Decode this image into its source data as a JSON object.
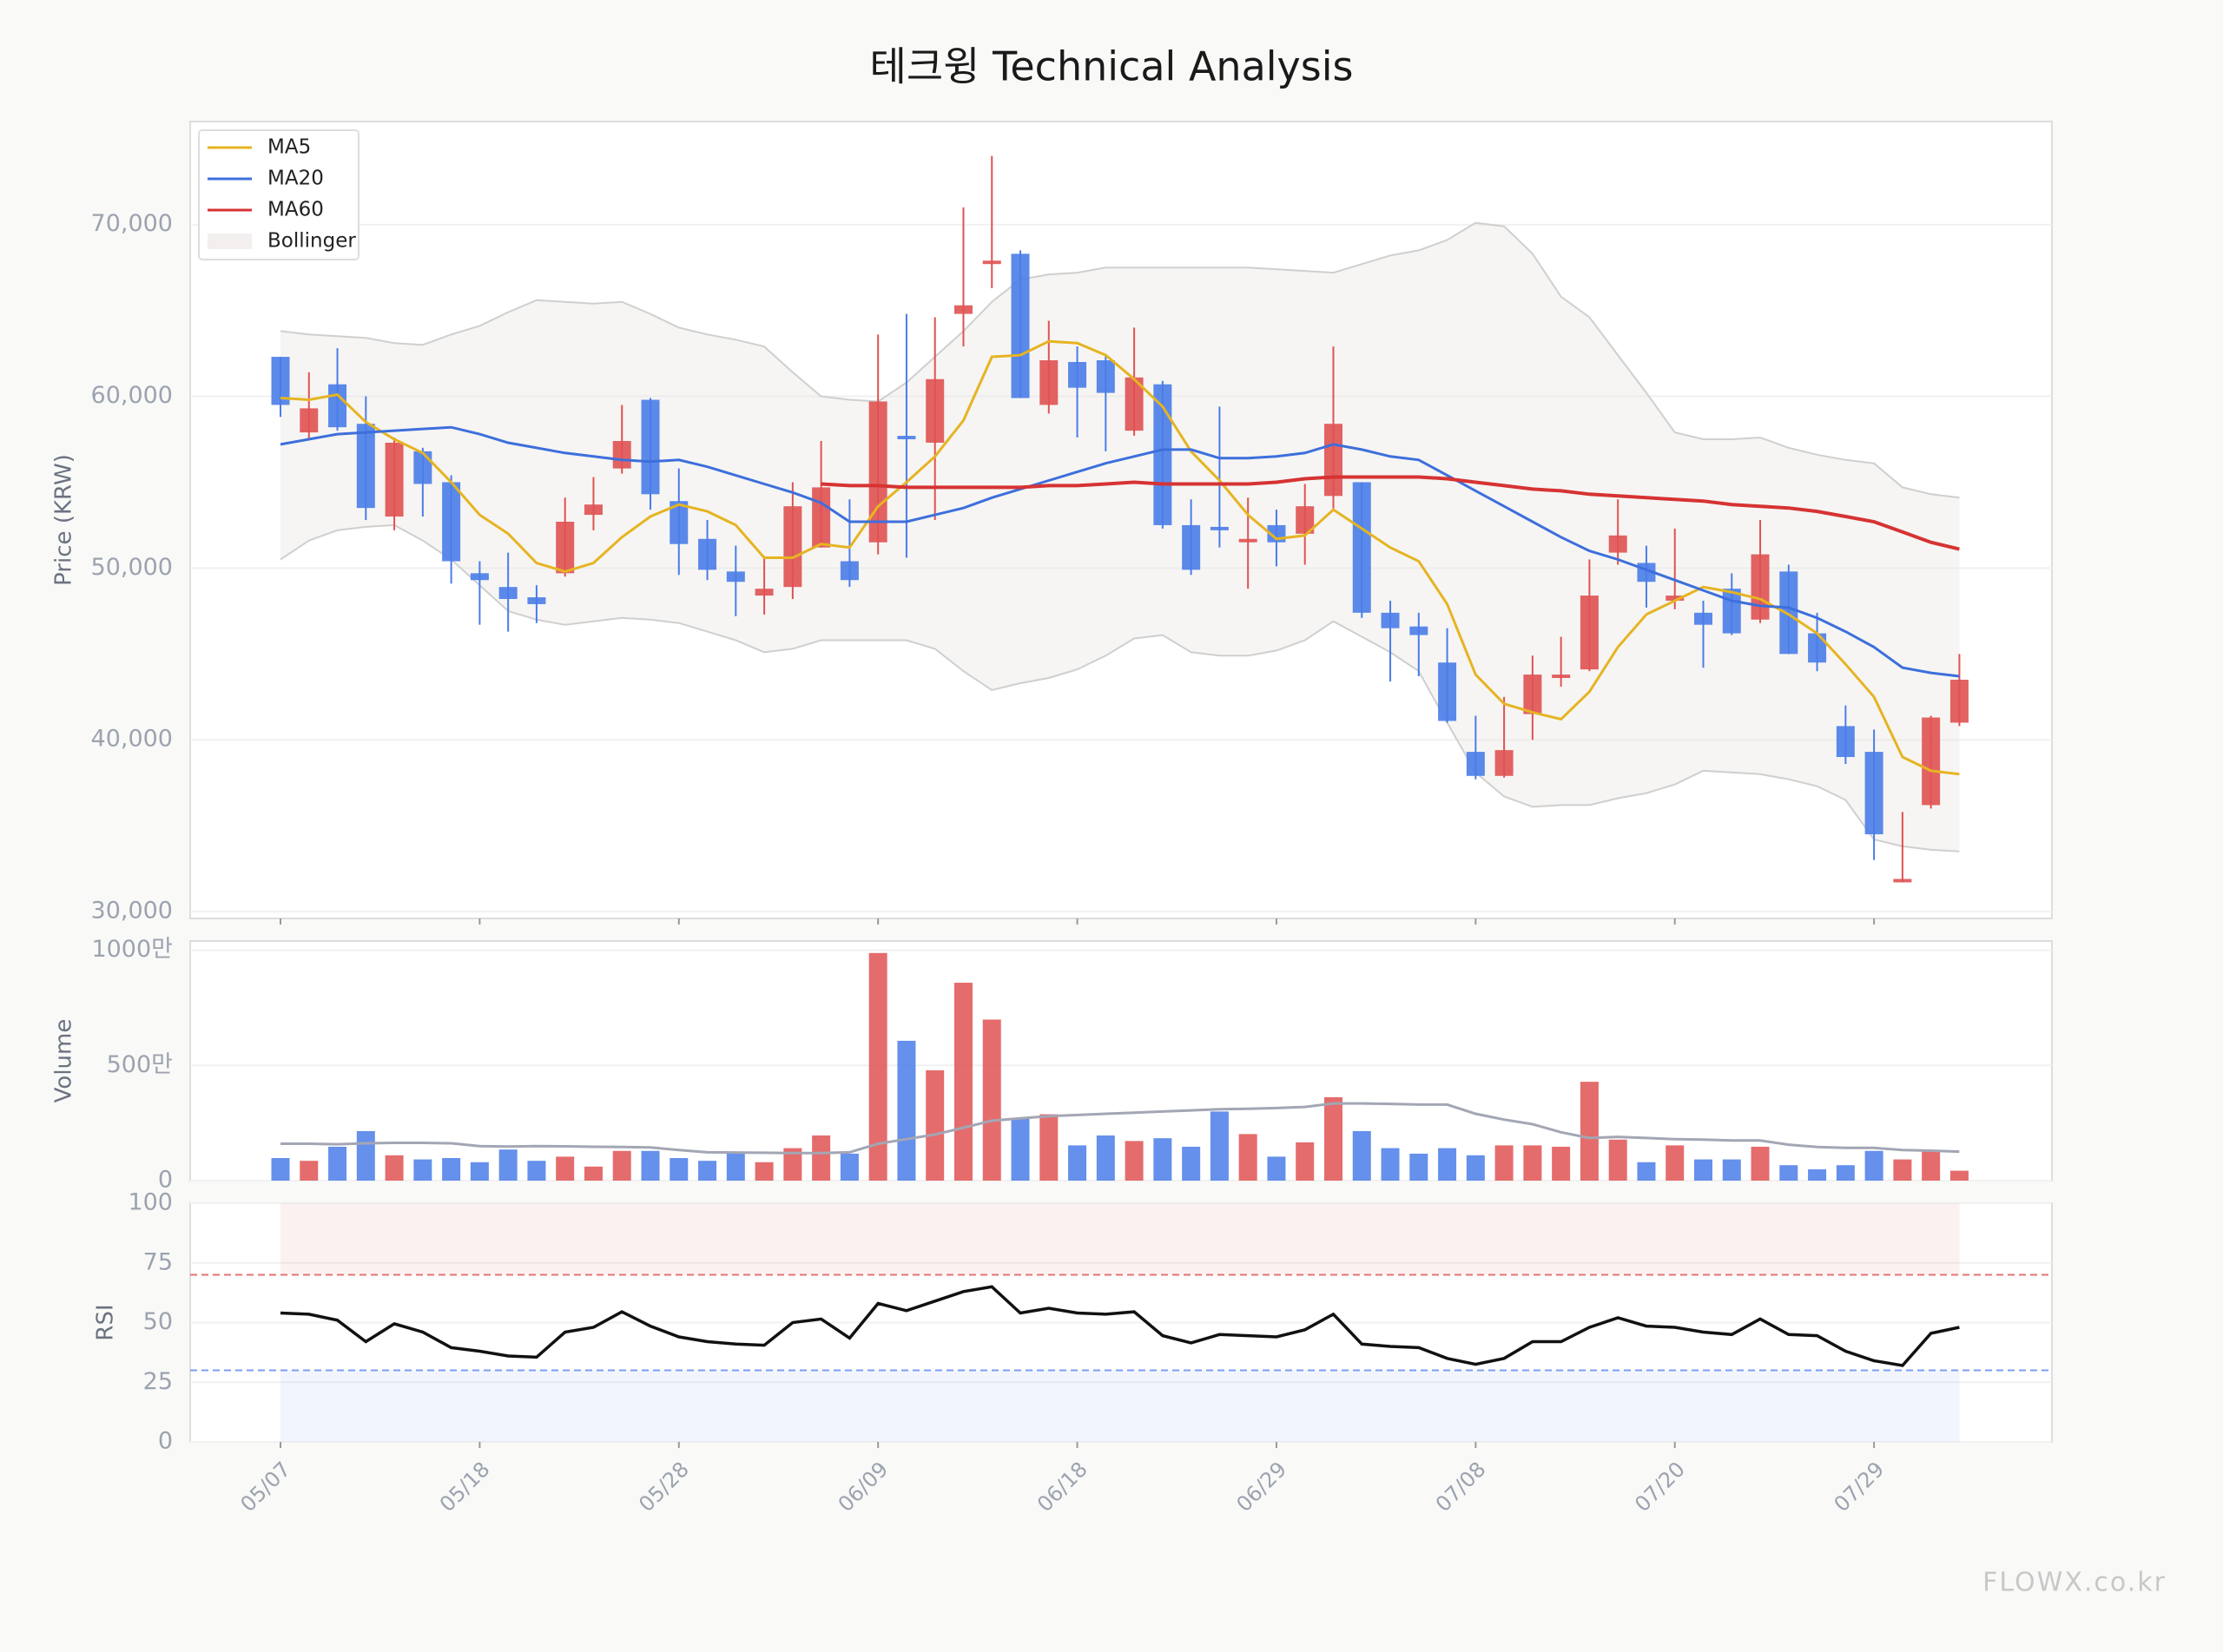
{
  "title": "테크윙 Technical Analysis",
  "watermark": "FLOWX.co.kr",
  "chart_data": [
    {
      "type": "candlestick",
      "ylabel": "Price (KRW)",
      "categories": [
        "05/07",
        null,
        null,
        null,
        null,
        null,
        null,
        "05/18",
        null,
        null,
        null,
        null,
        null,
        null,
        "05/28",
        null,
        null,
        null,
        null,
        null,
        null,
        "06/09",
        null,
        null,
        null,
        null,
        null,
        null,
        "06/18",
        null,
        null,
        null,
        null,
        null,
        null,
        "06/29",
        null,
        null,
        null,
        null,
        null,
        null,
        "07/08",
        null,
        null,
        null,
        null,
        null,
        null,
        "07/20",
        null,
        null,
        null,
        null,
        null,
        null,
        "07/29",
        null,
        null,
        null
      ],
      "open": [
        62300,
        57900,
        60700,
        58400,
        53000,
        56800,
        55000,
        49700,
        48900,
        48300,
        49700,
        53100,
        55800,
        59800,
        53900,
        51700,
        49800,
        48400,
        48900,
        51200,
        50400,
        51500,
        57700,
        57300,
        64800,
        67700,
        68300,
        59500,
        62000,
        62100,
        58000,
        60700,
        52500,
        52400,
        51500,
        52500,
        52000,
        54200,
        55000,
        47400,
        46600,
        44500,
        39300,
        37900,
        41500,
        43600,
        44100,
        50900,
        50300,
        48100,
        47400,
        48800,
        47000,
        49800,
        46200,
        40800,
        39300,
        31700,
        36200,
        41000
      ],
      "high": [
        62300,
        61400,
        62800,
        60000,
        57600,
        57000,
        55400,
        50400,
        50900,
        49000,
        54100,
        55300,
        59500,
        59900,
        55800,
        52800,
        51300,
        50700,
        55000,
        57400,
        54000,
        63600,
        64800,
        64600,
        71000,
        74000,
        68500,
        64400,
        62900,
        62400,
        64000,
        60900,
        54000,
        59400,
        54100,
        53400,
        54900,
        62900,
        55000,
        48100,
        47400,
        46500,
        41400,
        42500,
        44900,
        46000,
        50500,
        54000,
        51300,
        52300,
        48100,
        49700,
        52800,
        50200,
        47400,
        42000,
        40600,
        35800,
        41400,
        45000
      ],
      "low": [
        58800,
        57500,
        58000,
        52800,
        52200,
        53000,
        49100,
        46700,
        46300,
        46800,
        49500,
        52200,
        55500,
        53400,
        49600,
        49300,
        47200,
        47300,
        48200,
        51200,
        48900,
        50800,
        50600,
        52800,
        62900,
        66300,
        59900,
        59000,
        57600,
        56800,
        57700,
        52300,
        49600,
        51200,
        48800,
        50100,
        50200,
        53300,
        47100,
        43400,
        43700,
        41000,
        37700,
        37800,
        40000,
        43100,
        44000,
        50200,
        47700,
        47600,
        44200,
        46100,
        46800,
        45000,
        44000,
        38600,
        33000,
        31700,
        36000,
        40800
      ],
      "close": [
        59500,
        59300,
        58200,
        53500,
        57300,
        54900,
        50400,
        49300,
        48200,
        47900,
        52700,
        53700,
        57400,
        54300,
        51400,
        49900,
        49200,
        48800,
        53600,
        54700,
        49300,
        59700,
        57500,
        61000,
        65300,
        67900,
        59900,
        62100,
        60500,
        60200,
        61100,
        52500,
        49900,
        52200,
        51700,
        51500,
        53600,
        58400,
        47400,
        46500,
        46100,
        41100,
        37900,
        39400,
        43800,
        43800,
        48400,
        51900,
        49200,
        48400,
        46700,
        46200,
        50800,
        45000,
        44500,
        39000,
        34500,
        31900,
        41300,
        43500
      ],
      "up_color": "#e05252",
      "down_color": "#4a7de8",
      "series": [
        {
          "name": "MA5",
          "color": "#e6b422",
          "values": [
            59900,
            59800,
            60100,
            58500,
            57500,
            56700,
            55000,
            53100,
            52000,
            50300,
            49800,
            50300,
            51800,
            53000,
            53700,
            53300,
            52500,
            50600,
            50600,
            51400,
            51200,
            53600,
            55000,
            56500,
            58600,
            62300,
            62400,
            63200,
            63100,
            62400,
            61000,
            59400,
            56800,
            55100,
            53100,
            51700,
            51900,
            53400,
            52300,
            51200,
            50400,
            47900,
            43800,
            42100,
            41600,
            41200,
            42800,
            45400,
            47300,
            48100,
            48900,
            48600,
            48200,
            47300,
            46200,
            44400,
            42500,
            39000,
            38200,
            38000
          ]
        },
        {
          "name": "MA20",
          "color": "#3d6fdc",
          "values": [
            57200,
            57500,
            57800,
            57900,
            58000,
            58100,
            58200,
            57800,
            57300,
            57000,
            56700,
            56500,
            56300,
            56200,
            56300,
            55900,
            55400,
            54900,
            54400,
            53800,
            52700,
            52700,
            52700,
            53100,
            53500,
            54100,
            54600,
            55100,
            55600,
            56100,
            56500,
            56900,
            56900,
            56400,
            56400,
            56500,
            56700,
            57200,
            56900,
            56500,
            56300,
            55400,
            54500,
            53600,
            52700,
            51800,
            51000,
            50500,
            49900,
            49300,
            48700,
            48100,
            47800,
            47700,
            47100,
            46300,
            45400,
            44200,
            43900,
            43700
          ]
        },
        {
          "name": "MA60",
          "color": "#d63333",
          "values": [
            null,
            null,
            null,
            null,
            null,
            null,
            null,
            null,
            null,
            null,
            null,
            null,
            null,
            null,
            null,
            null,
            null,
            null,
            null,
            54900,
            54800,
            54800,
            54700,
            54700,
            54700,
            54700,
            54700,
            54800,
            54800,
            54900,
            55000,
            54900,
            54900,
            54900,
            54900,
            55000,
            55200,
            55300,
            55300,
            55300,
            55300,
            55200,
            55000,
            54800,
            54600,
            54500,
            54300,
            54200,
            54100,
            54000,
            53900,
            53700,
            53600,
            53500,
            53300,
            53000,
            52700,
            52100,
            51500,
            51100
          ]
        }
      ],
      "bands": {
        "name": "Bollinger",
        "color": "#e9e5e2",
        "line_color": "#cfcfcf",
        "upper": [
          63800,
          63600,
          63500,
          63400,
          63100,
          63000,
          63600,
          64100,
          64900,
          65600,
          65500,
          65400,
          65500,
          64800,
          64000,
          63600,
          63300,
          62900,
          61400,
          60000,
          59800,
          59700,
          60800,
          62300,
          63800,
          65500,
          66800,
          67100,
          67200,
          67500,
          67500,
          67500,
          67500,
          67500,
          67500,
          67400,
          67300,
          67200,
          67700,
          68200,
          68500,
          69100,
          70100,
          69900,
          68300,
          65800,
          64600,
          62400,
          60200,
          57900,
          57500,
          57500,
          57600,
          57000,
          56600,
          56300,
          56100,
          54700,
          54300,
          54100
        ],
        "lower": [
          50500,
          51600,
          52200,
          52400,
          52500,
          51600,
          50500,
          49000,
          47500,
          47000,
          46700,
          46900,
          47100,
          47000,
          46800,
          46300,
          45800,
          45100,
          45300,
          45800,
          45800,
          45800,
          45800,
          45300,
          44000,
          42900,
          43300,
          43600,
          44100,
          44900,
          45900,
          46100,
          45100,
          44900,
          44900,
          45200,
          45800,
          46900,
          46000,
          45100,
          44000,
          41000,
          38100,
          36700,
          36100,
          36200,
          36200,
          36600,
          36900,
          37400,
          38200,
          38100,
          38000,
          37700,
          37300,
          36500,
          34200,
          33800,
          33600,
          33500
        ]
      },
      "ylim": [
        29600,
        76000
      ],
      "yticks": [
        {
          "value": 30000,
          "label": "30,000"
        },
        {
          "value": 40000,
          "label": "40,000"
        },
        {
          "value": 50000,
          "label": "50,000"
        },
        {
          "value": 60000,
          "label": "60,000"
        },
        {
          "value": 70000,
          "label": "70,000"
        }
      ],
      "grid": true,
      "legend": "upper left"
    },
    {
      "type": "bar",
      "ylabel": "Volume",
      "values": [
        980000,
        860000,
        1470000,
        2150000,
        1100000,
        920000,
        980000,
        800000,
        1350000,
        860000,
        1040000,
        610000,
        1290000,
        1290000,
        980000,
        860000,
        1230000,
        800000,
        1410000,
        1960000,
        1170000,
        9880000,
        6070000,
        4790000,
        8590000,
        6990000,
        2700000,
        2880000,
        1530000,
        1960000,
        1720000,
        1840000,
        1470000,
        3000000,
        2020000,
        1040000,
        1660000,
        3620000,
        2150000,
        1410000,
        1170000,
        1410000,
        1100000,
        1530000,
        1530000,
        1470000,
        4290000,
        1780000,
        800000,
        1530000,
        920000,
        920000,
        1470000,
        670000,
        490000,
        670000,
        1290000,
        920000,
        1290000,
        430000
      ],
      "ma": {
        "color": "#a3a6b4",
        "values": [
          1600000,
          1600000,
          1580000,
          1620000,
          1640000,
          1640000,
          1620000,
          1500000,
          1480000,
          1500000,
          1490000,
          1470000,
          1460000,
          1440000,
          1330000,
          1230000,
          1220000,
          1210000,
          1200000,
          1200000,
          1230000,
          1600000,
          1800000,
          2000000,
          2300000,
          2600000,
          2700000,
          2800000,
          2850000,
          2900000,
          2950000,
          3000000,
          3050000,
          3100000,
          3120000,
          3150000,
          3200000,
          3350000,
          3350000,
          3330000,
          3300000,
          3300000,
          2900000,
          2650000,
          2450000,
          2100000,
          1850000,
          1900000,
          1850000,
          1800000,
          1780000,
          1740000,
          1740000,
          1560000,
          1460000,
          1420000,
          1420000,
          1330000,
          1300000,
          1260000
        ]
      },
      "ylim": [
        0,
        10400000
      ],
      "yticks": [
        0,
        {
          "value": 5000000,
          "label": "500만"
        },
        {
          "value": 10000000,
          "label": "1000만"
        }
      ],
      "grid": true
    },
    {
      "type": "line",
      "ylabel": "RSI",
      "values": [
        54,
        53.5,
        51,
        42,
        49.5,
        46,
        39.5,
        38,
        36,
        35.5,
        46,
        48,
        54.5,
        48.5,
        44,
        42,
        41,
        40.5,
        50,
        51.5,
        43.5,
        58,
        55,
        59,
        63,
        65,
        54,
        56,
        54,
        53.5,
        54.5,
        44.5,
        41.5,
        45,
        44.5,
        44,
        47,
        53.5,
        41,
        40,
        39.5,
        35,
        32.5,
        35,
        42,
        42,
        48,
        52,
        48.5,
        48,
        46,
        45,
        51.5,
        45,
        44.5,
        38,
        34,
        32,
        45.5,
        48
      ],
      "color": "#111111",
      "overbought": 70,
      "oversold": 30,
      "overbought_color": "#e57373",
      "oversold_color": "#7e9cf0",
      "ylim": [
        0,
        100
      ],
      "yticks": [
        0,
        25,
        50,
        75,
        100
      ],
      "grid": true
    }
  ]
}
